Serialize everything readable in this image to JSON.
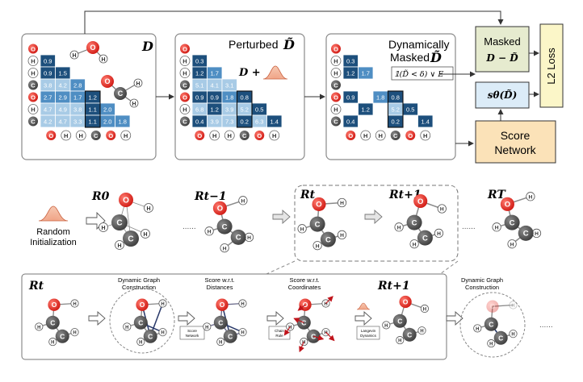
{
  "top": {
    "matrix1_label": "D",
    "matrix2_title": "Perturbed",
    "matrix2_symbol": "D̃",
    "matrix2_formula": "D + ",
    "matrix3_title_1": "Dynamically",
    "matrix3_title_2": "Masked",
    "matrix3_symbol": "D̃",
    "mask_condition": "𝟙(D̃ < δ) ∨ E",
    "masked_box_line1": "Masked",
    "masked_box_line2": "D − D̃",
    "score_fn": "sθ(D̃)",
    "score_network_line1": "Score",
    "score_network_line2": "Network",
    "l2_loss": "L2 Loss"
  },
  "atom_labels": [
    "O",
    "H",
    "H",
    "C",
    "O",
    "H",
    "C",
    "H",
    "H"
  ],
  "matrix1": [
    [
      "0.9"
    ],
    [
      "0.9",
      "1.5"
    ],
    [
      "3.8",
      "4.2",
      "2.8"
    ],
    [
      "2.7",
      "2.9",
      "1.7",
      "1.2"
    ],
    [
      "4.7",
      "4.9",
      "3.8",
      "1.1",
      "2.0"
    ],
    [
      "4.2",
      "4.7",
      "3.3",
      "1.1",
      "2.0",
      "1.8"
    ]
  ],
  "matrix2": [
    [
      "0.3"
    ],
    [
      "1.2",
      "1.7"
    ],
    [
      "5.1",
      "4.1",
      "3.1"
    ],
    [
      "0.9",
      "0.9",
      "1.8",
      "0.8"
    ],
    [
      "6.8",
      "1.2",
      "3.9",
      "5.2",
      "0.5"
    ],
    [
      "0.4",
      "3.9",
      "7.3",
      "0.2",
      "6.3",
      "1.4"
    ]
  ],
  "matrix3": [
    [
      "0.3"
    ],
    [
      "1.2",
      "1.7"
    ],
    [
      "",
      "",
      ""
    ],
    [
      "0.9",
      "",
      "1.8",
      "0.8"
    ],
    [
      "",
      "1.2",
      "",
      "5.2",
      "0.5"
    ],
    [
      "0.4",
      "",
      "",
      "0.2",
      "",
      "1.4"
    ]
  ],
  "middle": {
    "random_line1": "Random",
    "random_line2": "Initialization",
    "r0": "R0",
    "rt_minus": "Rt−1",
    "rt": "Rt",
    "rt_plus": "Rt+1",
    "rT": "RT",
    "dots": "......"
  },
  "bottom": {
    "rt": "Rt",
    "rt_plus": "Rt+1",
    "dgc_line1": "Dynamic Graph",
    "dgc_line2": "Construction",
    "sd_line1": "Score w.r.t.",
    "sd_line2": "Distances",
    "sc_line1": "Score w.r.t.",
    "sc_line2": "Coordinates",
    "box_score_network_1": "Score",
    "box_score_network_2": "Network",
    "box_chain_rule_1": "Chain",
    "box_chain_rule_2": "Rule",
    "box_langevin_1": "Langevin",
    "box_langevin_2": "Dynamics",
    "dgc2_line1": "Dynamic Graph",
    "dgc2_line2": "Construction",
    "dots": "......"
  },
  "colors": {
    "oxygen": "#e8231f",
    "carbon": "#5a5a5a",
    "cell_dark": "#1d4f7c",
    "cell_mid": "#4f8ec3",
    "cell_light": "#a8cbe6",
    "masked_box": "#e6ebcf",
    "score_box": "#dcecf8",
    "network_box": "#fbe2b8",
    "loss_box": "#fbf6c8"
  }
}
